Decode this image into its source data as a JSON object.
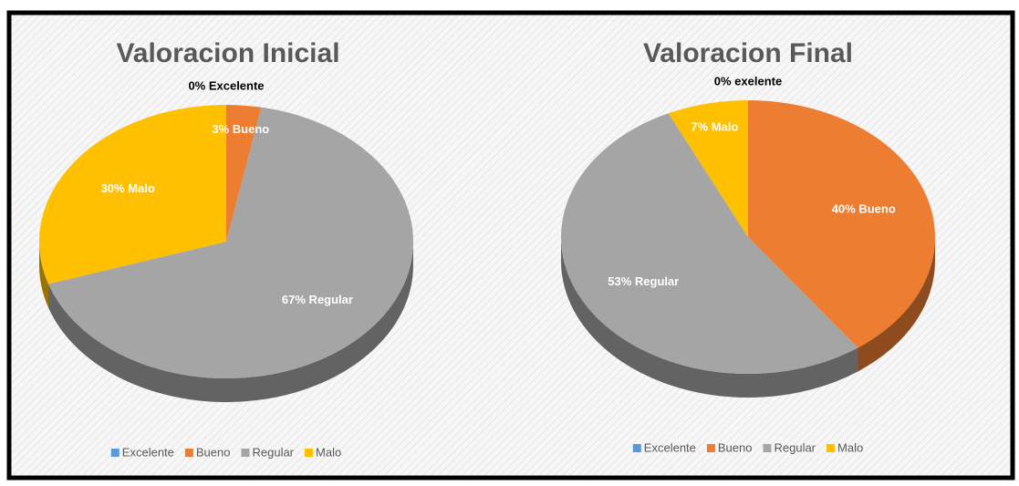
{
  "chart_data": [
    {
      "type": "pie",
      "title": "Valoracion Inicial",
      "categories": [
        "Excelente",
        "Bueno",
        "Regular",
        "Malo"
      ],
      "values": [
        0,
        3,
        67,
        30
      ],
      "value_labels": [
        "0% Excelente",
        "3% Bueno",
        "67% Regular",
        "30% Malo"
      ],
      "colors": [
        "#5b9bd5",
        "#ed7d31",
        "#a5a5a5",
        "#ffc000"
      ],
      "legend": "bottom"
    },
    {
      "type": "pie",
      "title": "Valoracion Final",
      "categories": [
        "Excelente",
        "Bueno",
        "Regular",
        "Malo"
      ],
      "values": [
        0,
        40,
        53,
        7
      ],
      "value_labels": [
        "0% exelente",
        "40% Bueno",
        "53% Regular",
        "7% Malo"
      ],
      "colors": [
        "#5b9bd5",
        "#ed7d31",
        "#a5a5a5",
        "#ffc000"
      ],
      "legend": "bottom"
    }
  ]
}
